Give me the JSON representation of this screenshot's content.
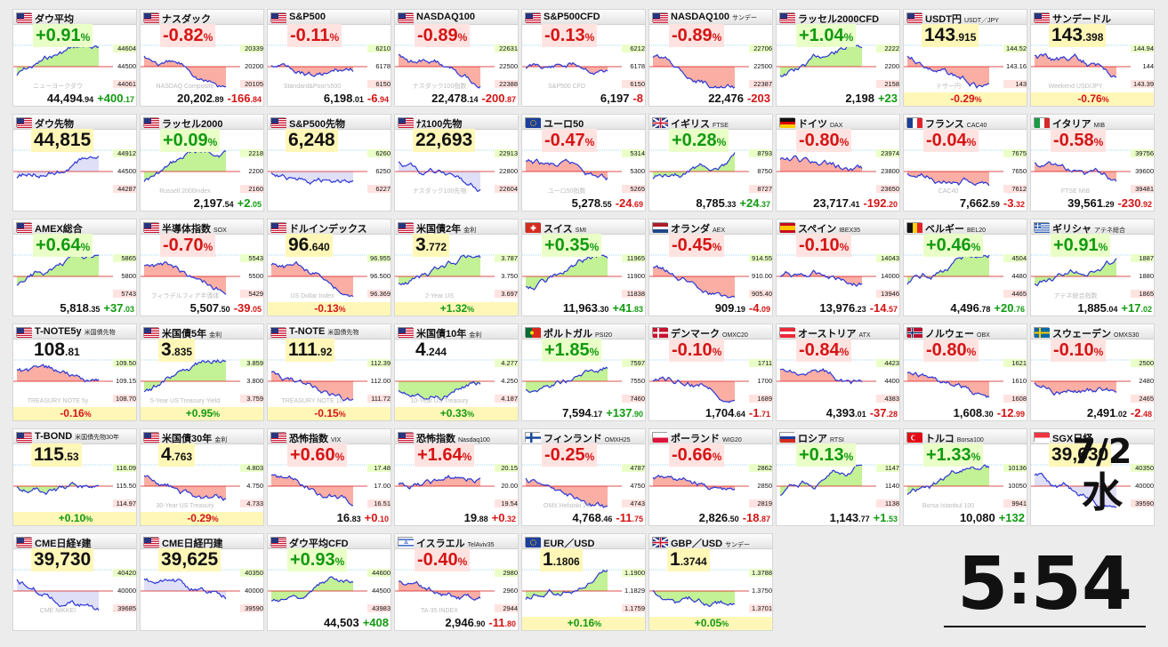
{
  "date": {
    "day": "7/2",
    "weekday": "水"
  },
  "clock": {
    "hour": "5",
    "minute": "54"
  },
  "colors": {
    "positive": "#119a11",
    "negative": "#d41515",
    "line": "#2b36d6",
    "pos_fill": "#bdf08a",
    "neg_fill": "#f9a59a",
    "future_fill": "#dcdcf6",
    "highlight": "#fff7b8"
  },
  "tiles": [
    {
      "name": "ダウ平均",
      "sub": "",
      "flag": "us",
      "style": "pct",
      "pct": "+0.91",
      "dir": "pos",
      "price_main": "44,494",
      "price_dec": ".94",
      "change_main": "+400",
      "change_dec": ".17",
      "levels": [
        "44604",
        "44500",
        "44061"
      ],
      "watermark": "ニューヨークダウ",
      "trend": "up"
    },
    {
      "name": "ナスダック",
      "sub": "",
      "flag": "us",
      "style": "pct",
      "pct": "-0.82",
      "dir": "neg",
      "price_main": "20,202",
      "price_dec": ".89",
      "change_main": "-166",
      "change_dec": ".84",
      "levels": [
        "20339",
        "20200",
        "20105"
      ],
      "watermark": "NASDAQ Composite",
      "trend": "down"
    },
    {
      "name": "S&P500",
      "sub": "",
      "flag": "us",
      "style": "pct",
      "pct": "-0.11",
      "dir": "neg",
      "price_main": "6,198",
      "price_dec": ".01",
      "change_main": "-6",
      "change_dec": ".94",
      "levels": [
        "6210",
        "6178",
        "6150"
      ],
      "watermark": "Standard&Poor's500",
      "trend": "flat"
    },
    {
      "name": "NASDAQ100",
      "sub": "",
      "flag": "us",
      "style": "pct",
      "pct": "-0.89",
      "dir": "neg",
      "price_main": "22,478",
      "price_dec": ".14",
      "change_main": "-200",
      "change_dec": ".87",
      "levels": [
        "22631",
        "22500",
        "22388"
      ],
      "watermark": "ナスダック100指数",
      "trend": "down"
    },
    {
      "name": "S&P500CFD",
      "sub": "",
      "flag": "us",
      "style": "pct",
      "pct": "-0.13",
      "dir": "neg",
      "price_main": "6,197",
      "price_dec": "",
      "change_main": "-8",
      "change_dec": "",
      "levels": [
        "6212",
        "6178",
        "6150"
      ],
      "watermark": "S&P500 CFD",
      "trend": "flat"
    },
    {
      "name": "NASDAQ100",
      "sub": "サンデー",
      "flag": "us",
      "style": "pct",
      "pct": "-0.89",
      "dir": "neg",
      "price_main": "22,476",
      "price_dec": "",
      "change_main": "-203",
      "change_dec": "",
      "levels": [
        "22706",
        "22500",
        "22387"
      ],
      "watermark": "",
      "trend": "down"
    },
    {
      "name": "ラッセル2000CFD",
      "sub": "",
      "flag": "us",
      "style": "pct",
      "pct": "+1.04",
      "dir": "pos",
      "price_main": "2,198",
      "price_dec": "",
      "change_main": "+23",
      "change_dec": "",
      "levels": [
        "2222",
        "2200",
        "2158"
      ],
      "watermark": "",
      "trend": "up"
    },
    {
      "name": "USDT円",
      "sub": "USDT／JPY",
      "flag": "us",
      "style": "fx",
      "price_main": "143",
      "price_dec": ".915",
      "pct": "-0.29",
      "dir": "neg",
      "levels": [
        "144.52",
        "143.16",
        "143"
      ],
      "watermark": "テザー円",
      "trend": "down"
    },
    {
      "name": "サンデードル",
      "sub": "",
      "flag": "us",
      "style": "fx",
      "price_main": "143",
      "price_dec": ".398",
      "pct": "-0.76",
      "dir": "neg",
      "levels": [
        "144.94",
        "144",
        "143.39"
      ],
      "watermark": "Weekend USD/JPY",
      "trend": "down"
    },
    {
      "name": "ダウ先物",
      "sub": "",
      "flag": "us",
      "style": "fut",
      "price_main": "44,815",
      "price_dec": "",
      "pct": "",
      "dir": "pos",
      "levels": [
        "44912",
        "44500",
        "44287"
      ],
      "watermark": "",
      "trend": "up"
    },
    {
      "name": "ラッセル2000",
      "sub": "",
      "flag": "us",
      "style": "pct",
      "pct": "+0.09",
      "dir": "pos",
      "price_main": "2,197",
      "price_dec": ".54",
      "change_main": "+2",
      "change_dec": ".05",
      "levels": [
        "2218",
        "2200",
        "2160"
      ],
      "watermark": "Russell 2000Index",
      "trend": "up"
    },
    {
      "name": "S&P500先物",
      "sub": "",
      "flag": "us",
      "style": "fut",
      "price_main": "6,248",
      "price_dec": "",
      "pct": "",
      "dir": "pos",
      "levels": [
        "6260",
        "6250",
        "6227"
      ],
      "watermark": "",
      "trend": "flat"
    },
    {
      "name": "ﾅｽ100先物",
      "sub": "",
      "flag": "us",
      "style": "fut",
      "price_main": "22,693",
      "price_dec": "",
      "pct": "",
      "dir": "pos",
      "levels": [
        "22913",
        "22800",
        "22604"
      ],
      "watermark": "ナスダック100先物",
      "trend": "down"
    },
    {
      "name": "ユーロ50",
      "sub": "",
      "flag": "eu",
      "style": "pct",
      "pct": "-0.47",
      "dir": "neg",
      "price_main": "5,278",
      "price_dec": ".55",
      "change_main": "-24",
      "change_dec": ".69",
      "levels": [
        "5314",
        "5300",
        "5265"
      ],
      "watermark": "ユーロ50指数",
      "trend": "down"
    },
    {
      "name": "イギリス",
      "sub": "FTSE",
      "flag": "gb",
      "style": "pct",
      "pct": "+0.28",
      "dir": "pos",
      "price_main": "8,785",
      "price_dec": ".33",
      "change_main": "+24",
      "change_dec": ".37",
      "levels": [
        "8793",
        "8750",
        "8727"
      ],
      "watermark": "",
      "trend": "up"
    },
    {
      "name": "ドイツ",
      "sub": "DAX",
      "flag": "de",
      "style": "pct",
      "pct": "-0.80",
      "dir": "neg",
      "price_main": "23,717",
      "price_dec": ".41",
      "change_main": "-192",
      "change_dec": ".20",
      "levels": [
        "23974",
        "23800",
        "23650"
      ],
      "watermark": "",
      "trend": "down"
    },
    {
      "name": "フランス",
      "sub": "CAC40",
      "flag": "fr",
      "style": "pct",
      "pct": "-0.04",
      "dir": "neg",
      "price_main": "7,662",
      "price_dec": ".59",
      "change_main": "-3",
      "change_dec": ".32",
      "levels": [
        "7675",
        "7650",
        "7612"
      ],
      "watermark": "CAC40",
      "trend": "flat"
    },
    {
      "name": "イタリア",
      "sub": "MIB",
      "flag": "it",
      "style": "pct",
      "pct": "-0.58",
      "dir": "neg",
      "price_main": "39,561",
      "price_dec": ".29",
      "change_main": "-230",
      "change_dec": ".92",
      "levels": [
        "39756",
        "39600",
        "39481"
      ],
      "watermark": "FTSE MIB",
      "trend": "down"
    },
    {
      "name": "AMEX総合",
      "sub": "",
      "flag": "us",
      "style": "pct",
      "pct": "+0.64",
      "dir": "pos",
      "price_main": "5,818",
      "price_dec": ".35",
      "change_main": "+37",
      "change_dec": ".03",
      "levels": [
        "5865",
        "5800",
        "5743"
      ],
      "watermark": "",
      "trend": "up"
    },
    {
      "name": "半導体指数",
      "sub": "SOX",
      "flag": "us",
      "style": "pct",
      "pct": "-0.70",
      "dir": "neg",
      "price_main": "5,507",
      "price_dec": ".50",
      "change_main": "-39",
      "change_dec": ".05",
      "levels": [
        "5543",
        "5500",
        "5429"
      ],
      "watermark": "フィラデルフィア半導体",
      "trend": "down"
    },
    {
      "name": "ドルインデックス",
      "sub": "",
      "flag": "us",
      "style": "fx",
      "price_main": "96",
      "price_dec": ".640",
      "pct": "-0.13",
      "dir": "neg",
      "levels": [
        "96.955",
        "96.500",
        "96.369"
      ],
      "watermark": "US Dollar Index",
      "trend": "down"
    },
    {
      "name": "米国債2年",
      "sub": "金利",
      "flag": "us",
      "style": "fx",
      "price_main": "3",
      "price_dec": ".772",
      "pct": "+1.32",
      "dir": "pos",
      "levels": [
        "3.787",
        "3.750",
        "3.697"
      ],
      "watermark": "2-Year US",
      "trend": "up"
    },
    {
      "name": "スイス",
      "sub": "SMI",
      "flag": "ch",
      "style": "pct",
      "pct": "+0.35",
      "dir": "pos",
      "price_main": "11,963",
      "price_dec": ".30",
      "change_main": "+41",
      "change_dec": ".83",
      "levels": [
        "11965",
        "11900",
        "11838"
      ],
      "watermark": "",
      "trend": "up"
    },
    {
      "name": "オランダ",
      "sub": "AEX",
      "flag": "nl",
      "style": "pct",
      "pct": "-0.45",
      "dir": "neg",
      "price_main": "909",
      "price_dec": ".19",
      "change_main": "-4",
      "change_dec": ".09",
      "levels": [
        "914.55",
        "910.00",
        "905.40"
      ],
      "watermark": "",
      "trend": "down"
    },
    {
      "name": "スペイン",
      "sub": "IBEX35",
      "flag": "es",
      "style": "pct",
      "pct": "-0.10",
      "dir": "neg",
      "price_main": "13,976",
      "price_dec": ".23",
      "change_main": "-14",
      "change_dec": ".57",
      "levels": [
        "14043",
        "14000",
        "13946"
      ],
      "watermark": "",
      "trend": "flat"
    },
    {
      "name": "ベルギー",
      "sub": "BEL20",
      "flag": "be",
      "style": "pct",
      "pct": "+0.46",
      "dir": "pos",
      "price_main": "4,496",
      "price_dec": ".78",
      "change_main": "+20",
      "change_dec": ".76",
      "levels": [
        "4504",
        "4480",
        "4465"
      ],
      "watermark": "",
      "trend": "up"
    },
    {
      "name": "ギリシャ",
      "sub": "アテネ総合",
      "flag": "gr",
      "style": "pct",
      "pct": "+0.91",
      "dir": "pos",
      "price_main": "1,885",
      "price_dec": ".04",
      "change_main": "+17",
      "change_dec": ".02",
      "levels": [
        "1887",
        "1880",
        "1865"
      ],
      "watermark": "アテネ総合指数",
      "trend": "up"
    },
    {
      "name": "T-NOTE5y",
      "sub": "米国債先物",
      "flag": "us",
      "style": "fxplain",
      "price_main": "108",
      "price_dec": ".81",
      "pct": "-0.16",
      "dir": "neg",
      "levels": [
        "109.50",
        "109.15",
        "108.70"
      ],
      "watermark": "TREASURY NOTE 5y",
      "trend": "down"
    },
    {
      "name": "米国債5年",
      "sub": "金利",
      "flag": "us",
      "style": "fx",
      "price_main": "3",
      "price_dec": ".835",
      "pct": "+0.95",
      "dir": "pos",
      "levels": [
        "3.859",
        "3.800",
        "3.759"
      ],
      "watermark": "5-Year US Treasury Yield",
      "trend": "up"
    },
    {
      "name": "T-NOTE",
      "sub": "米国債先物",
      "flag": "us",
      "style": "fx",
      "price_main": "111",
      "price_dec": ".92",
      "pct": "-0.15",
      "dir": "neg",
      "levels": [
        "112.39",
        "112.00",
        "111.72"
      ],
      "watermark": "TREASURY NOTE 10",
      "trend": "down"
    },
    {
      "name": "米国債10年",
      "sub": "金利",
      "flag": "us",
      "style": "fxplain",
      "price_main": "4",
      "price_dec": ".244",
      "pct": "+0.33",
      "dir": "pos",
      "levels": [
        "4.277",
        "4.250",
        "4.187"
      ],
      "watermark": "10-Year US Treasury",
      "trend": "up"
    },
    {
      "name": "ポルトガル",
      "sub": "PSI20",
      "flag": "pt",
      "style": "pct",
      "pct": "+1.85",
      "dir": "pos",
      "price_main": "7,594",
      "price_dec": ".17",
      "change_main": "+137",
      "change_dec": ".90",
      "levels": [
        "7597",
        "7550",
        "7460"
      ],
      "watermark": "",
      "trend": "up"
    },
    {
      "name": "デンマーク",
      "sub": "OMXC20",
      "flag": "dk",
      "style": "pct",
      "pct": "-0.10",
      "dir": "neg",
      "price_main": "1,704",
      "price_dec": ".64",
      "change_main": "-1",
      "change_dec": ".71",
      "levels": [
        "1711",
        "1700",
        "1689"
      ],
      "watermark": "",
      "trend": "flat"
    },
    {
      "name": "オーストリア",
      "sub": "ATX",
      "flag": "at",
      "style": "pct",
      "pct": "-0.84",
      "dir": "neg",
      "price_main": "4,393",
      "price_dec": ".01",
      "change_main": "-37",
      "change_dec": ".28",
      "levels": [
        "4423",
        "4400",
        "4383"
      ],
      "watermark": "",
      "trend": "down"
    },
    {
      "name": "ノルウェー",
      "sub": "OBX",
      "flag": "no",
      "style": "pct",
      "pct": "-0.80",
      "dir": "neg",
      "price_main": "1,608",
      "price_dec": ".30",
      "change_main": "-12",
      "change_dec": ".99",
      "levels": [
        "1621",
        "1610",
        "1608"
      ],
      "watermark": "",
      "trend": "down"
    },
    {
      "name": "スウェーデン",
      "sub": "OMXS30",
      "flag": "se",
      "style": "pct",
      "pct": "-0.10",
      "dir": "neg",
      "price_main": "2,491",
      "price_dec": ".02",
      "change_main": "-2",
      "change_dec": ".48",
      "levels": [
        "2500",
        "2480",
        "2465"
      ],
      "watermark": "",
      "trend": "flat"
    },
    {
      "name": "T-BOND",
      "sub": "米国債先物30年",
      "flag": "us",
      "style": "fx",
      "price_main": "115",
      "price_dec": ".53",
      "pct": "+0.10",
      "dir": "pos",
      "levels": [
        "116.09",
        "115.50",
        "114.97"
      ],
      "watermark": "",
      "trend": "flat"
    },
    {
      "name": "米国債30年",
      "sub": "金利",
      "flag": "us",
      "style": "fx",
      "price_main": "4",
      "price_dec": ".763",
      "pct": "-0.29",
      "dir": "neg",
      "levels": [
        "4.803",
        "4.750",
        "4.733"
      ],
      "watermark": "30-Year US Treasury",
      "trend": "down"
    },
    {
      "name": "恐怖指数",
      "sub": "VIX",
      "flag": "us",
      "style": "pct",
      "pct": "+0.60",
      "dir": "neg",
      "price_main": "16",
      "price_dec": ".83",
      "change_main": "+0",
      "change_dec": ".10",
      "levels": [
        "17.48",
        "17.00",
        "16.51"
      ],
      "watermark": "",
      "trend": "down"
    },
    {
      "name": "恐怖指数",
      "sub": "Nasdaq100",
      "flag": "us",
      "style": "pct",
      "pct": "+1.64",
      "dir": "neg",
      "price_main": "19",
      "price_dec": ".88",
      "change_main": "+0",
      "change_dec": ".32",
      "levels": [
        "20.15",
        "20.00",
        "19.54"
      ],
      "watermark": "",
      "trend": "flat"
    },
    {
      "name": "フィンランド",
      "sub": "OMXH25",
      "flag": "fi",
      "style": "pct",
      "pct": "-0.25",
      "dir": "neg",
      "price_main": "4,768",
      "price_dec": ".46",
      "change_main": "-11",
      "change_dec": ".75",
      "levels": [
        "4787",
        "4750",
        "4743"
      ],
      "watermark": "OMX Helsinki 25",
      "trend": "down"
    },
    {
      "name": "ポーランド",
      "sub": "WIG20",
      "flag": "pl",
      "style": "pct",
      "pct": "-0.66",
      "dir": "neg",
      "price_main": "2,826",
      "price_dec": ".50",
      "change_main": "-18",
      "change_dec": ".87",
      "levels": [
        "2862",
        "2850",
        "2819"
      ],
      "watermark": "",
      "trend": "down"
    },
    {
      "name": "ロシア",
      "sub": "RTSI",
      "flag": "ru",
      "style": "pct",
      "pct": "+0.13",
      "dir": "pos",
      "price_main": "1,143",
      "price_dec": ".77",
      "change_main": "+1",
      "change_dec": ".53",
      "levels": [
        "1147",
        "1140",
        "1138"
      ],
      "watermark": "",
      "trend": "up"
    },
    {
      "name": "トルコ",
      "sub": "Borsa100",
      "flag": "tr",
      "style": "pct",
      "pct": "+1.33",
      "dir": "pos",
      "price_main": "10,080",
      "price_dec": "",
      "change_main": "+132",
      "change_dec": "",
      "levels": [
        "10136",
        "10050",
        "9941"
      ],
      "watermark": "Borsa Istanbul 100",
      "trend": "up"
    },
    {
      "name": "SGX日経",
      "sub": "",
      "flag": "sg",
      "style": "fut",
      "price_main": "39,630",
      "price_dec": "",
      "pct": "",
      "dir": "neg",
      "levels": [
        "40350",
        "40000",
        "39590"
      ],
      "watermark": "",
      "trend": "down"
    },
    {
      "name": "CME日経¥建",
      "sub": "",
      "flag": "us",
      "style": "fut",
      "price_main": "39,730",
      "price_dec": "",
      "pct": "",
      "dir": "neg",
      "levels": [
        "40420",
        "40000",
        "39685"
      ],
      "watermark": "CME NIKKEI",
      "trend": "down"
    },
    {
      "name": "CME日経円建",
      "sub": "",
      "flag": "us",
      "style": "fut",
      "price_main": "39,625",
      "price_dec": "",
      "pct": "",
      "dir": "neg",
      "levels": [
        "40350",
        "40000",
        "39590"
      ],
      "watermark": "",
      "trend": "down"
    },
    {
      "name": "ダウ平均CFD",
      "sub": "",
      "flag": "us",
      "style": "pct",
      "pct": "+0.93",
      "dir": "pos",
      "price_main": "44,503",
      "price_dec": "",
      "change_main": "+408",
      "change_dec": "",
      "levels": [
        "44600",
        "44500",
        "43983"
      ],
      "watermark": "",
      "trend": "up"
    },
    {
      "name": "イスラエル",
      "sub": "TelAviv35",
      "flag": "il",
      "style": "pct",
      "pct": "-0.40",
      "dir": "neg",
      "price_main": "2,946",
      "price_dec": ".90",
      "change_main": "-11",
      "change_dec": ".80",
      "levels": [
        "2980",
        "2960",
        "2944"
      ],
      "watermark": "TA-35 INDEX",
      "trend": "down"
    },
    {
      "name": "EUR／USD",
      "sub": "",
      "flag": "eu",
      "style": "fx",
      "price_main": "1",
      "price_dec": ".1806",
      "pct": "+0.16",
      "dir": "pos",
      "levels": [
        "1.1900",
        "1.1829",
        "1.1759"
      ],
      "watermark": "",
      "trend": "up"
    },
    {
      "name": "GBP／USD",
      "sub": "サンデー",
      "flag": "gb",
      "style": "fx",
      "price_main": "1",
      "price_dec": ".3744",
      "pct": "+0.05",
      "dir": "pos",
      "levels": [
        "1.3788",
        "1.3750",
        "1.3701"
      ],
      "watermark": "",
      "trend": "flat"
    }
  ]
}
